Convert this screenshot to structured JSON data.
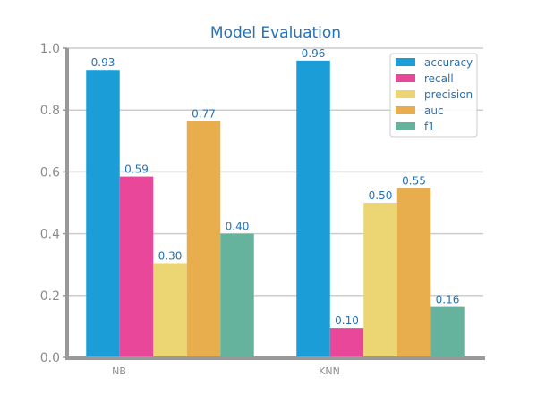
{
  "chart_data": {
    "type": "bar",
    "title": "Model Evaluation",
    "xlabel": "",
    "ylabel": "",
    "categories": [
      "NB",
      "KNN"
    ],
    "ylim": [
      0,
      1.0
    ],
    "yticks": [
      "0.0",
      "0.2",
      "0.4",
      "0.6",
      "0.8",
      "1.0"
    ],
    "grid": true,
    "legend_position": "top-right",
    "series": [
      {
        "name": "accuracy",
        "color": "#1b9ed8",
        "values": [
          0.93,
          0.96
        ],
        "labels": [
          "0.93",
          "0.96"
        ]
      },
      {
        "name": "recall",
        "color": "#e8479a",
        "values": [
          0.585,
          0.095
        ],
        "labels": [
          "0.59",
          "0.10"
        ]
      },
      {
        "name": "precision",
        "color": "#ecd573",
        "values": [
          0.305,
          0.5
        ],
        "labels": [
          "0.30",
          "0.50"
        ]
      },
      {
        "name": "auc",
        "color": "#e8ae4e",
        "values": [
          0.765,
          0.548
        ],
        "labels": [
          "0.77",
          "0.55"
        ]
      },
      {
        "name": "f1",
        "color": "#66b39d",
        "values": [
          0.4,
          0.163
        ],
        "labels": [
          "0.40",
          "0.16"
        ]
      }
    ]
  }
}
